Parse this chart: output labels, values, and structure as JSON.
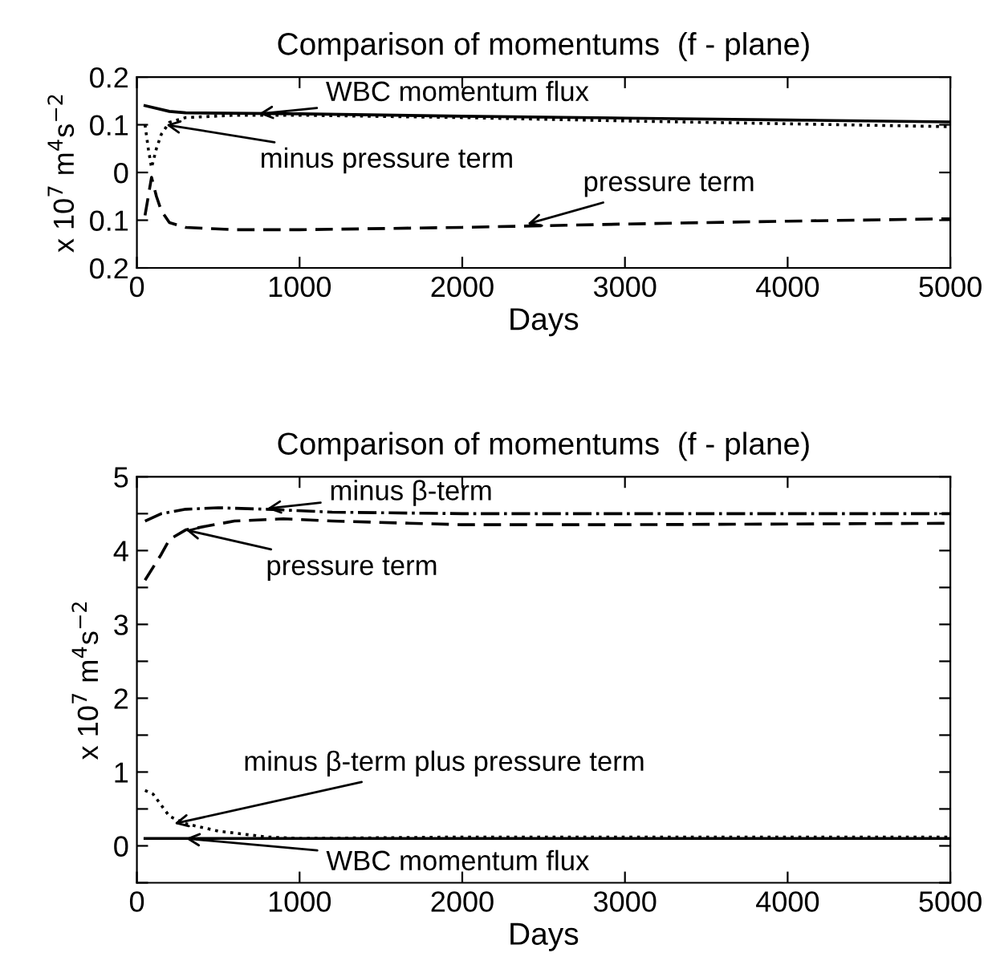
{
  "chart_data": [
    {
      "type": "line",
      "title": "Comparison of momentums  (f - plane)",
      "xlabel": "Days",
      "ylabel": "x 10$^{7}$ m$^{4}$s$^{−2}$",
      "xlim": [
        0,
        5000
      ],
      "xticks": [
        0,
        1000,
        2000,
        3000,
        4000,
        5000
      ],
      "ylim": [
        -0.2,
        0.2
      ],
      "yticks": [
        {
          "value": -0.2,
          "label": "0.2"
        },
        {
          "value": -0.1,
          "label": "0.1"
        },
        0,
        0.1,
        0.2
      ],
      "grid": false,
      "series": [
        {
          "color": "#000000",
          "line_style": "solid",
          "x": [
            50,
            200,
            300,
            1000,
            2000,
            3000,
            4000,
            5000
          ],
          "values": [
            0.14,
            0.128,
            0.125,
            0.123,
            0.118,
            0.114,
            0.11,
            0.106
          ]
        },
        {
          "color": "#000000",
          "line_style": "dotted",
          "x": [
            50,
            70,
            90,
            120,
            150,
            200,
            300,
            600,
            1000,
            2000,
            3000,
            4000,
            5000
          ],
          "values": [
            0.1,
            0.05,
            0.01,
            0.05,
            0.08,
            0.105,
            0.115,
            0.12,
            0.12,
            0.115,
            0.108,
            0.102,
            0.096
          ]
        },
        {
          "color": "#000000",
          "line_style": "dashed",
          "x": [
            50,
            70,
            90,
            120,
            150,
            200,
            300,
            600,
            1000,
            2000,
            3000,
            4000,
            5000
          ],
          "values": [
            -0.09,
            -0.05,
            -0.01,
            -0.05,
            -0.08,
            -0.105,
            -0.115,
            -0.12,
            -0.12,
            -0.115,
            -0.108,
            -0.102,
            -0.097
          ]
        }
      ],
      "annotations": [
        {
          "text": "WBC momentum flux",
          "x": 750,
          "y": 0.123
        },
        {
          "text": "minus pressure term",
          "x": 180,
          "y": 0.1
        },
        {
          "text": "pressure term",
          "x": 2400,
          "y": -0.108
        }
      ]
    },
    {
      "type": "line",
      "title": "Comparison of momentums  (f - plane)",
      "xlabel": "Days",
      "ylabel": "x 10$^{7}$ m$^{4}$s$^{−2}$",
      "xlim": [
        0,
        5000
      ],
      "xticks": [
        0,
        1000,
        2000,
        3000,
        4000,
        5000
      ],
      "ylim": [
        -0.5,
        5
      ],
      "yticks": [
        {
          "value": -0.5,
          "label": null
        },
        0,
        {
          "value": 0.5,
          "label": null
        },
        1,
        {
          "value": 1.5,
          "label": null
        },
        2,
        {
          "value": 2.5,
          "label": null
        },
        3,
        {
          "value": 3.5,
          "label": null
        },
        4,
        {
          "value": 4.5,
          "label": null
        },
        5
      ],
      "grid": false,
      "series": [
        {
          "color": "#000000",
          "line_style": "dashdot",
          "x": [
            50,
            150,
            300,
            500,
            800,
            1200,
            2000,
            3000,
            5000
          ],
          "values": [
            4.4,
            4.5,
            4.56,
            4.58,
            4.56,
            4.52,
            4.5,
            4.5,
            4.5
          ]
        },
        {
          "color": "#000000",
          "line_style": "dashed",
          "x": [
            50,
            150,
            200,
            300,
            600,
            900,
            1200,
            2000,
            3000,
            4000,
            5000
          ],
          "values": [
            3.6,
            3.95,
            4.15,
            4.28,
            4.4,
            4.43,
            4.4,
            4.35,
            4.35,
            4.36,
            4.37
          ]
        },
        {
          "color": "#000000",
          "line_style": "dotted",
          "x": [
            50,
            100,
            150,
            200,
            300,
            500,
            800,
            1000,
            2000,
            3000,
            5000
          ],
          "values": [
            0.75,
            0.7,
            0.55,
            0.4,
            0.3,
            0.2,
            0.12,
            0.1,
            0.12,
            0.12,
            0.12
          ]
        },
        {
          "color": "#000000",
          "line_style": "solid",
          "x": [
            50,
            1000,
            2000,
            3000,
            4000,
            5000
          ],
          "values": [
            0.1,
            0.1,
            0.1,
            0.1,
            0.1,
            0.1
          ]
        }
      ],
      "annotations": [
        {
          "text": "minus β-term",
          "x": 800,
          "y": 4.57
        },
        {
          "text": "pressure term",
          "x": 300,
          "y": 4.28
        },
        {
          "text": "minus β-term plus pressure term",
          "x": 230,
          "y": 0.3
        },
        {
          "text": "WBC momentum flux",
          "x": 300,
          "y": 0.1
        }
      ]
    }
  ]
}
